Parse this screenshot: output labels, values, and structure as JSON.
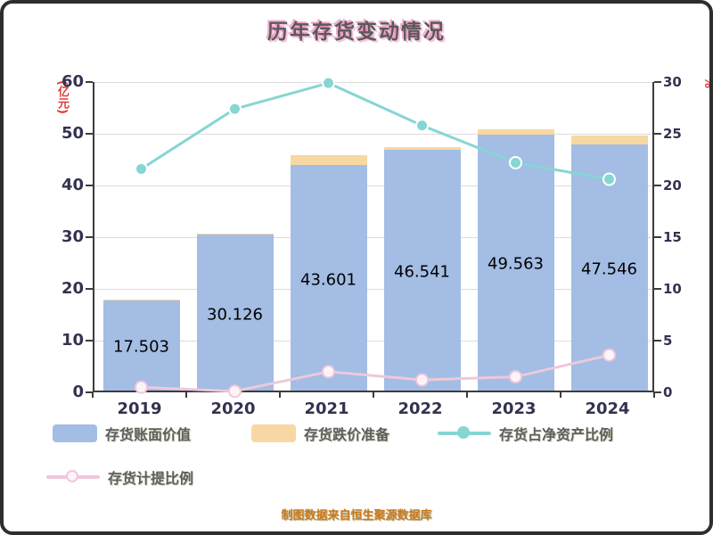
{
  "chart_data": {
    "type": "bar",
    "title": "历年存货变动情况",
    "categories": [
      "2019",
      "2020",
      "2021",
      "2022",
      "2023",
      "2024"
    ],
    "series": [
      {
        "name": "存货账面价值",
        "kind": "bar",
        "axis": "left",
        "color": "#a3bde4",
        "values": [
          17.503,
          30.126,
          43.601,
          46.541,
          49.563,
          47.546
        ],
        "data_labels": [
          "17.503",
          "30.126",
          "43.601",
          "46.541",
          "49.563",
          "47.546"
        ]
      },
      {
        "name": "存货跌价准备",
        "kind": "bar-stacked",
        "axis": "left",
        "color": "#f8d8a2",
        "values": [
          0.1,
          0.15,
          1.9,
          0.6,
          1.0,
          1.8
        ]
      },
      {
        "name": "存货占净资产比例",
        "kind": "line",
        "axis": "right",
        "color": "#86d6d3",
        "marker_fill": "#86d6d3",
        "values": [
          21.6,
          27.4,
          29.9,
          25.8,
          22.2,
          20.6
        ]
      },
      {
        "name": "存货计提比例",
        "kind": "line",
        "axis": "right",
        "color": "#eec8dc",
        "marker_fill": "#fdf4f9",
        "values": [
          0.5,
          0.1,
          2.0,
          1.2,
          1.5,
          3.6
        ]
      }
    ],
    "left_axis": {
      "unit": "(亿元)",
      "min": 0,
      "max": 60,
      "ticks": [
        0,
        10,
        20,
        30,
        40,
        50,
        60
      ]
    },
    "right_axis": {
      "unit": "%",
      "min": 0,
      "max": 30,
      "ticks": [
        0,
        5,
        10,
        15,
        20,
        25,
        30
      ]
    },
    "grid": true,
    "legend_position": "bottom"
  },
  "legend": {
    "items": [
      {
        "label": "存货账面价值",
        "swatch": "bar"
      },
      {
        "label": "存货跌价准备",
        "swatch": "bar"
      },
      {
        "label": "存货占净资产比例",
        "swatch": "line-dot"
      },
      {
        "label": "存货计提比例",
        "swatch": "line-hollow-dot"
      }
    ]
  },
  "footer": {
    "note": "制图数据来自恒生聚源数据库"
  },
  "colors": {
    "axis_text": "#33334f",
    "unit_text": "#e03a3a",
    "value_label": "#000000",
    "footer_text": "#c9791f",
    "grid_line": "#dcdcdc",
    "axis_line": "#3c3c3c"
  }
}
